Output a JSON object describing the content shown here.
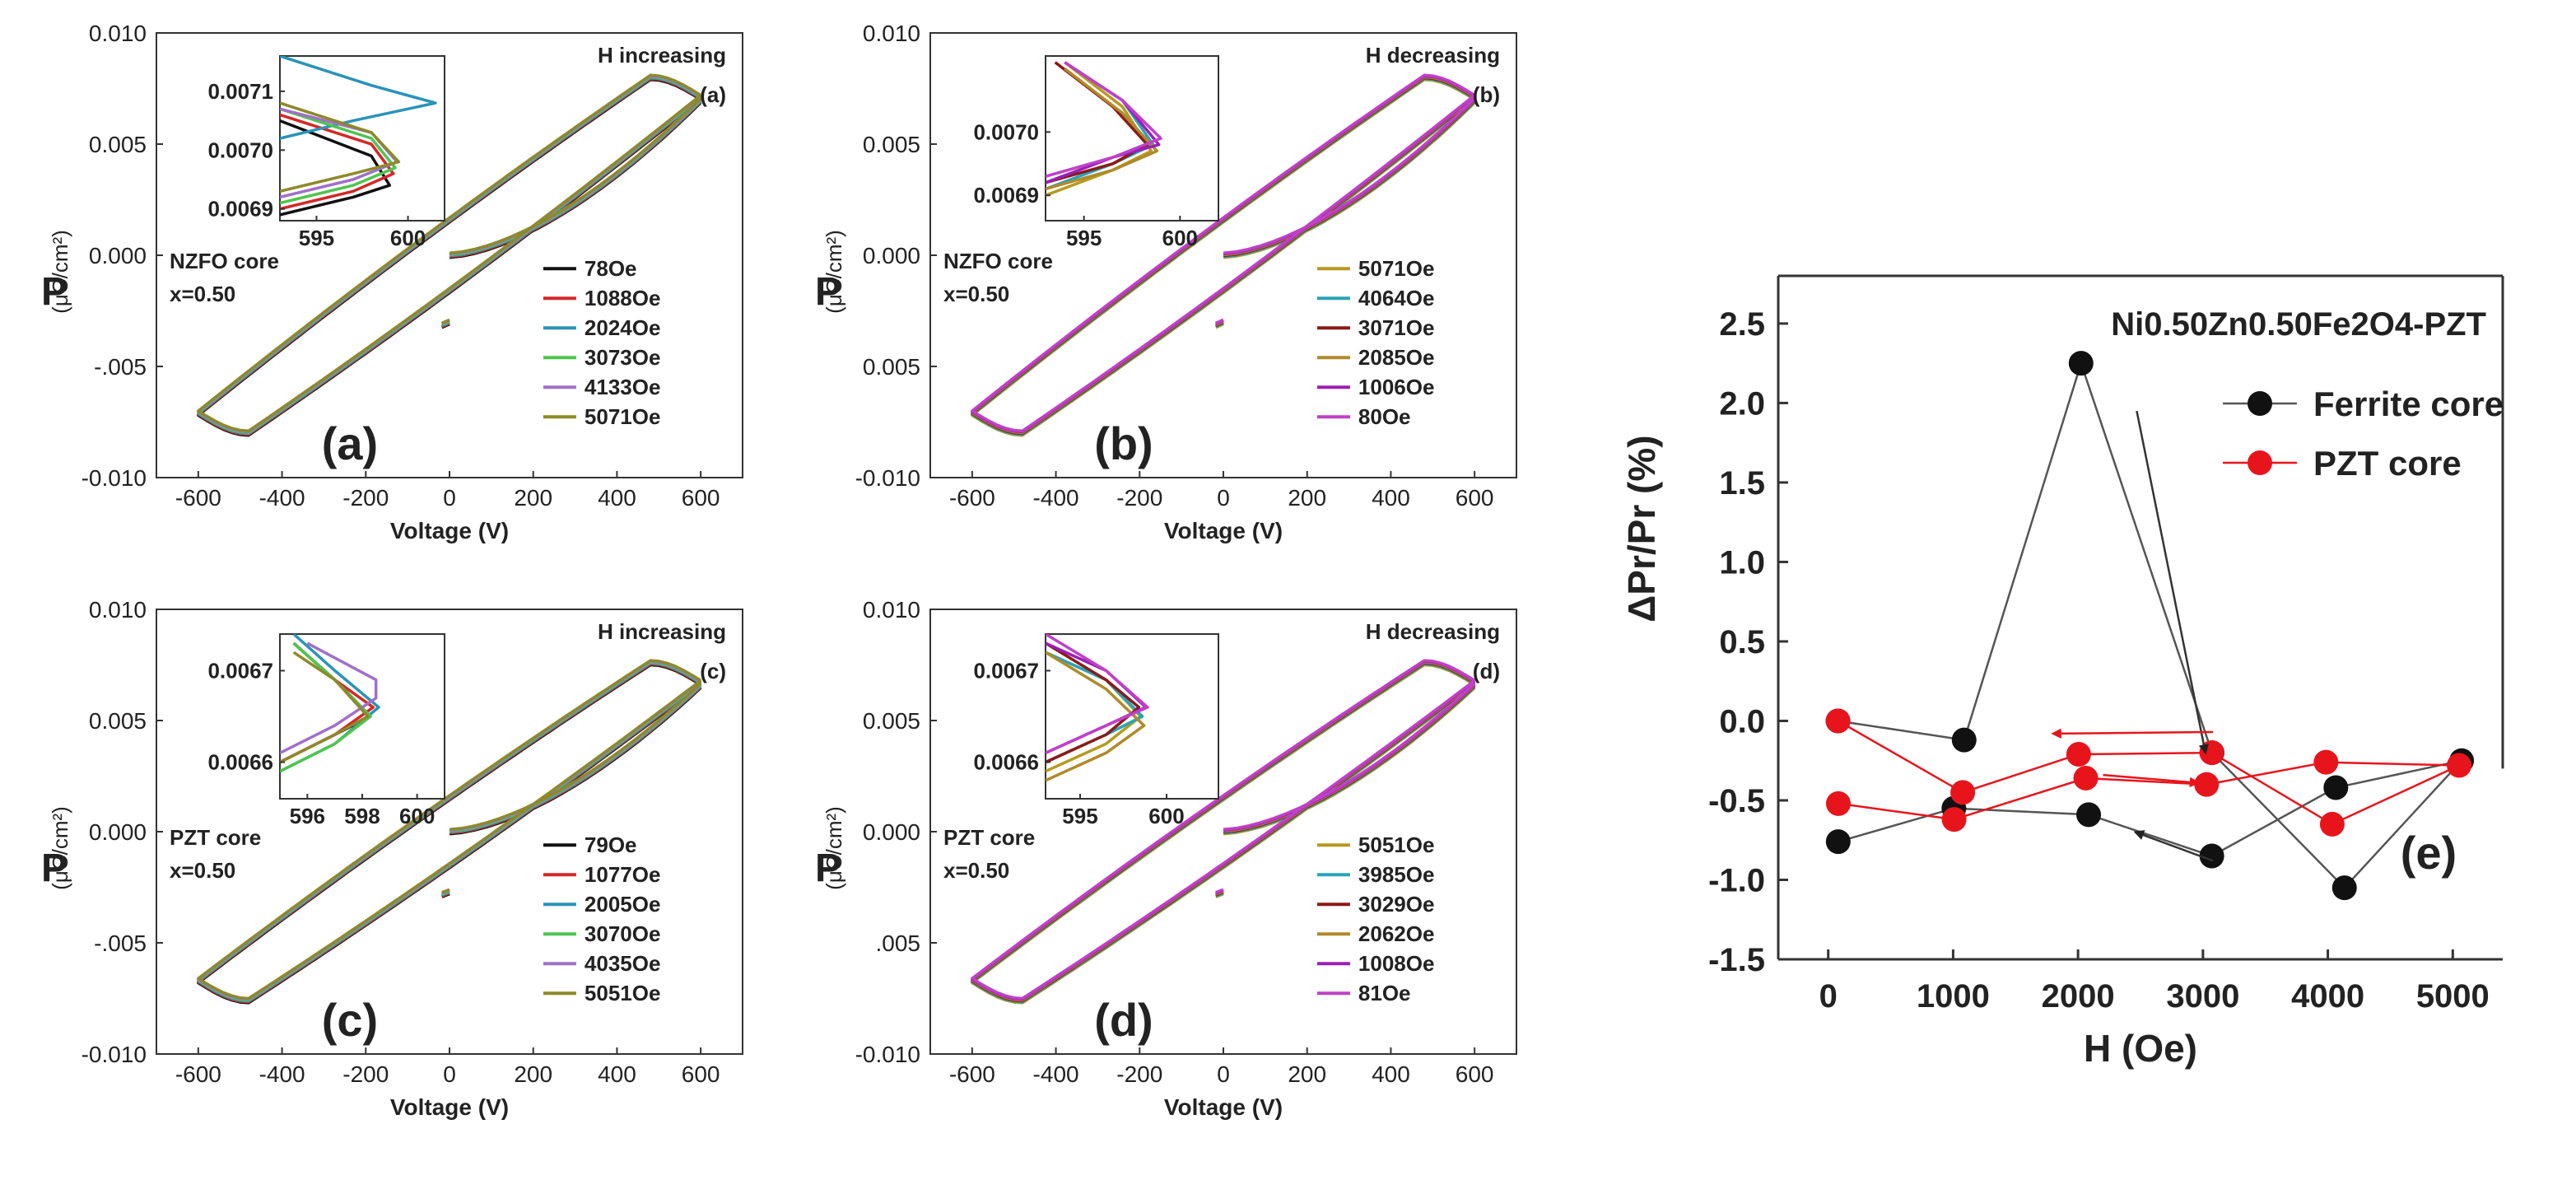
{
  "chart_data": [
    {
      "id": "a",
      "type": "line",
      "panel_label": "(a)",
      "corner_label": "(a)",
      "annotation": "H increasing",
      "core_label": "NZFO core",
      "x_label": "x=0.50",
      "xlabel": "Voltage (V)",
      "ylabel": "P",
      "yunit": "(μC/cm²)",
      "xlim": [
        -700,
        700
      ],
      "ylim": [
        -0.01,
        0.01
      ],
      "xticks": [
        "-600",
        "-400",
        "-200",
        "0",
        "200",
        "400",
        "600"
      ],
      "yticks": [
        "-0.010",
        "-.005",
        "0.000",
        "0.005",
        "0.010"
      ],
      "loop": {
        "vmax": 600,
        "pmax": 0.0071,
        "ppeak": 0.008,
        "vpeak": 480,
        "pinit_end": -0.003
      },
      "series": [
        {
          "name": "78Oe",
          "color": "#111111"
        },
        {
          "name": "1088Oe",
          "color": "#d62728"
        },
        {
          "name": "2024Oe",
          "color": "#2a93b8"
        },
        {
          "name": "3073Oe",
          "color": "#4fc44f"
        },
        {
          "name": "4133Oe",
          "color": "#a070c8"
        },
        {
          "name": "5071Oe",
          "color": "#8c8a2a"
        }
      ],
      "inset": {
        "xticks": [
          "595",
          "600"
        ],
        "yticks": [
          "0.0069",
          "0.0070",
          "0.0071"
        ],
        "xlim": [
          593,
          602
        ],
        "ylim": [
          0.00688,
          0.00716
        ],
        "curves": [
          {
            "color": "#111111",
            "points": [
              [
                593,
                0.00689
              ],
              [
                597,
                0.00692
              ],
              [
                599,
                0.00694
              ],
              [
                598,
                0.00699
              ],
              [
                593,
                0.00705
              ]
            ]
          },
          {
            "color": "#d62728",
            "points": [
              [
                593,
                0.0069
              ],
              [
                597,
                0.00693
              ],
              [
                599.2,
                0.00696
              ],
              [
                598,
                0.00701
              ],
              [
                593,
                0.00706
              ]
            ]
          },
          {
            "color": "#2a93b8",
            "points": [
              [
                593,
                0.00702
              ],
              [
                597,
                0.00705
              ],
              [
                601.5,
                0.00708
              ],
              [
                598,
                0.00711
              ],
              [
                593,
                0.00716
              ]
            ]
          },
          {
            "color": "#4fc44f",
            "points": [
              [
                593,
                0.00691
              ],
              [
                597,
                0.00694
              ],
              [
                599.3,
                0.00697
              ],
              [
                598,
                0.00702
              ],
              [
                593,
                0.00707
              ]
            ]
          },
          {
            "color": "#a070c8",
            "points": [
              [
                593,
                0.00692
              ],
              [
                597,
                0.00695
              ],
              [
                599.4,
                0.00698
              ],
              [
                598,
                0.00703
              ],
              [
                593,
                0.00707
              ]
            ]
          },
          {
            "color": "#8c8a2a",
            "points": [
              [
                593,
                0.00693
              ],
              [
                597,
                0.00696
              ],
              [
                599.5,
                0.00698
              ],
              [
                598,
                0.00703
              ],
              [
                593,
                0.00708
              ]
            ]
          }
        ]
      }
    },
    {
      "id": "b",
      "type": "line",
      "panel_label": "(b)",
      "corner_label": "(b)",
      "annotation": "H decreasing",
      "core_label": "NZFO core",
      "x_label": "x=0.50",
      "xlabel": "Voltage (V)",
      "ylabel": "P",
      "yunit": "(μC/cm²)",
      "xlim": [
        -700,
        700
      ],
      "ylim": [
        -0.01,
        0.01
      ],
      "xticks": [
        "-600",
        "-400",
        "-200",
        "0",
        "200",
        "400",
        "600"
      ],
      "yticks": [
        "-0.010",
        "0.005",
        "0.000",
        "0.005",
        "0.010"
      ],
      "loop": {
        "vmax": 600,
        "pmax": 0.0071,
        "ppeak": 0.008,
        "vpeak": 480,
        "pinit_end": -0.003
      },
      "series": [
        {
          "name": "5071Oe",
          "color": "#b59a1f"
        },
        {
          "name": "4064Oe",
          "color": "#2aa3b8"
        },
        {
          "name": "3071Oe",
          "color": "#8b1a1a"
        },
        {
          "name": "2085Oe",
          "color": "#b08a2a"
        },
        {
          "name": "1006Oe",
          "color": "#9b1fb5"
        },
        {
          "name": "80Oe",
          "color": "#c040c8"
        }
      ],
      "inset": {
        "xticks": [
          "595",
          "600"
        ],
        "yticks": [
          "0.0069",
          "0.0070"
        ],
        "xlim": [
          593,
          602
        ],
        "ylim": [
          0.00686,
          0.00712
        ],
        "curves": [
          {
            "color": "#b59a1f",
            "points": [
              [
                593,
                0.0069
              ],
              [
                596.5,
                0.00694
              ],
              [
                598.5,
                0.00697
              ],
              [
                597,
                0.00704
              ],
              [
                594,
                0.00711
              ]
            ]
          },
          {
            "color": "#2aa3b8",
            "points": [
              [
                593,
                0.00691
              ],
              [
                596.5,
                0.00695
              ],
              [
                598.6,
                0.00698
              ],
              [
                597,
                0.00705
              ],
              [
                594,
                0.00711
              ]
            ]
          },
          {
            "color": "#8b1a1a",
            "points": [
              [
                593,
                0.00692
              ],
              [
                596.5,
                0.00695
              ],
              [
                598.3,
                0.00698
              ],
              [
                596.5,
                0.00704
              ],
              [
                593.5,
                0.00711
              ]
            ]
          },
          {
            "color": "#b08a2a",
            "points": [
              [
                593,
                0.00691
              ],
              [
                596.5,
                0.00694
              ],
              [
                598.8,
                0.00697
              ],
              [
                597,
                0.00703
              ],
              [
                594,
                0.0071
              ]
            ]
          },
          {
            "color": "#9b1fb5",
            "points": [
              [
                593,
                0.00692
              ],
              [
                596.5,
                0.00696
              ],
              [
                598.9,
                0.00698
              ],
              [
                597,
                0.00705
              ],
              [
                594,
                0.00711
              ]
            ]
          },
          {
            "color": "#c040c8",
            "points": [
              [
                593,
                0.00693
              ],
              [
                596.5,
                0.00696
              ],
              [
                599.0,
                0.00699
              ],
              [
                597,
                0.00705
              ],
              [
                594,
                0.00711
              ]
            ]
          }
        ]
      }
    },
    {
      "id": "c",
      "type": "line",
      "panel_label": "(c)",
      "corner_label": "(c)",
      "annotation": "H increasing",
      "core_label": "PZT core",
      "x_label": "x=0.50",
      "xlabel": "Voltage (V)",
      "ylabel": "P",
      "yunit": "(μC/cm²)",
      "xlim": [
        -700,
        700
      ],
      "ylim": [
        -0.01,
        0.01
      ],
      "xticks": [
        "-600",
        "-400",
        "-200",
        "0",
        "200",
        "400",
        "600"
      ],
      "yticks": [
        "-0.010",
        "-.005",
        "0.000",
        "0.005",
        "0.010"
      ],
      "loop": {
        "vmax": 600,
        "pmax": 0.0067,
        "ppeak": 0.0076,
        "vpeak": 480,
        "pinit_end": -0.0027
      },
      "series": [
        {
          "name": "79Oe",
          "color": "#111111"
        },
        {
          "name": "1077Oe",
          "color": "#d62728"
        },
        {
          "name": "2005Oe",
          "color": "#2a93b8"
        },
        {
          "name": "3070Oe",
          "color": "#4fc44f"
        },
        {
          "name": "4035Oe",
          "color": "#a070c8"
        },
        {
          "name": "5051Oe",
          "color": "#8c8a2a"
        }
      ],
      "inset": {
        "xticks": [
          "596",
          "598",
          "600"
        ],
        "yticks": [
          "0.0066",
          "0.0067"
        ],
        "xlim": [
          595,
          601
        ],
        "ylim": [
          0.00656,
          0.00674
        ],
        "curves": [
          {
            "color": "#111111",
            "points": [
              [
                595,
                0.0066
              ],
              [
                597,
                0.00663
              ],
              [
                598.3,
                0.00665
              ],
              [
                597,
                0.00669
              ],
              [
                595.5,
                0.00673
              ]
            ]
          },
          {
            "color": "#d62728",
            "points": [
              [
                595,
                0.0066
              ],
              [
                597,
                0.00663
              ],
              [
                598.4,
                0.00666
              ],
              [
                597,
                0.00669
              ],
              [
                595.5,
                0.00673
              ]
            ]
          },
          {
            "color": "#2a93b8",
            "points": [
              [
                595,
                0.00659
              ],
              [
                597,
                0.00662
              ],
              [
                598.6,
                0.00666
              ],
              [
                597,
                0.0067
              ],
              [
                595.5,
                0.00674
              ]
            ]
          },
          {
            "color": "#4fc44f",
            "points": [
              [
                595,
                0.00659
              ],
              [
                597,
                0.00662
              ],
              [
                598.3,
                0.00665
              ],
              [
                597,
                0.00669
              ],
              [
                595.5,
                0.00673
              ]
            ]
          },
          {
            "color": "#a070c8",
            "points": [
              [
                595,
                0.00661
              ],
              [
                597,
                0.00664
              ],
              [
                598.5,
                0.00667
              ],
              [
                598.5,
                0.00669
              ],
              [
                596,
                0.00673
              ]
            ]
          },
          {
            "color": "#8c8a2a",
            "points": [
              [
                595,
                0.0066
              ],
              [
                597,
                0.00663
              ],
              [
                598.2,
                0.00665
              ],
              [
                597,
                0.00669
              ],
              [
                595.5,
                0.00672
              ]
            ]
          }
        ]
      }
    },
    {
      "id": "d",
      "type": "line",
      "panel_label": "(d)",
      "corner_label": "(d)",
      "annotation": "H decreasing",
      "core_label": "PZT core",
      "x_label": "x=0.50",
      "xlabel": "Voltage (V)",
      "ylabel": "P",
      "yunit": "(μC/cm²)",
      "xlim": [
        -700,
        700
      ],
      "ylim": [
        -0.01,
        0.01
      ],
      "xticks": [
        "-600",
        "-400",
        "-200",
        "0",
        "200",
        "400",
        "600"
      ],
      "yticks": [
        "-0.010",
        ".005",
        "0.000",
        "0.005",
        "0.010"
      ],
      "loop": {
        "vmax": 600,
        "pmax": 0.0067,
        "ppeak": 0.0076,
        "vpeak": 480,
        "pinit_end": -0.0027
      },
      "series": [
        {
          "name": "5051Oe",
          "color": "#b59a1f"
        },
        {
          "name": "3985Oe",
          "color": "#2aa3b8"
        },
        {
          "name": "3029Oe",
          "color": "#8b1a1a"
        },
        {
          "name": "2062Oe",
          "color": "#b08a2a"
        },
        {
          "name": "1008Oe",
          "color": "#9b1fb5"
        },
        {
          "name": "81Oe",
          "color": "#c040c8"
        }
      ],
      "inset": {
        "xticks": [
          "595",
          "600"
        ],
        "yticks": [
          "0.0066",
          "0.0067"
        ],
        "xlim": [
          593,
          603
        ],
        "ylim": [
          0.00656,
          0.00674
        ],
        "curves": [
          {
            "color": "#b59a1f",
            "points": [
              [
                593,
                0.00659
              ],
              [
                596.5,
                0.00662
              ],
              [
                598.5,
                0.00665
              ],
              [
                596.5,
                0.00669
              ],
              [
                593,
                0.00672
              ]
            ]
          },
          {
            "color": "#2aa3b8",
            "points": [
              [
                593,
                0.0066
              ],
              [
                596.5,
                0.00663
              ],
              [
                598.6,
                0.00665
              ],
              [
                596.5,
                0.00669
              ],
              [
                593,
                0.00672
              ]
            ]
          },
          {
            "color": "#8b1a1a",
            "points": [
              [
                593,
                0.0066
              ],
              [
                596.5,
                0.00663
              ],
              [
                598.4,
                0.00666
              ],
              [
                596.5,
                0.00669
              ],
              [
                593,
                0.00673
              ]
            ]
          },
          {
            "color": "#b08a2a",
            "points": [
              [
                593,
                0.00658
              ],
              [
                596.5,
                0.00661
              ],
              [
                598.7,
                0.00664
              ],
              [
                596.5,
                0.00668
              ],
              [
                593,
                0.00672
              ]
            ]
          },
          {
            "color": "#9b1fb5",
            "points": [
              [
                593,
                0.00661
              ],
              [
                596.5,
                0.00664
              ],
              [
                598.8,
                0.00666
              ],
              [
                596.5,
                0.0067
              ],
              [
                593,
                0.00673
              ]
            ]
          },
          {
            "color": "#c040c8",
            "points": [
              [
                593,
                0.00661
              ],
              [
                596.5,
                0.00664
              ],
              [
                598.9,
                0.00666
              ],
              [
                596.5,
                0.0067
              ],
              [
                593,
                0.00674
              ]
            ]
          }
        ]
      }
    },
    {
      "id": "e",
      "type": "line",
      "panel_label": "(e)",
      "title": "Ni0.50Zn0.50Fe2O4-PZT",
      "xlabel": "H (Oe)",
      "ylabel": "ΔPr/Pr (%)",
      "xlim": [
        -400,
        5400
      ],
      "ylim": [
        -1.5,
        2.8
      ],
      "xticks": [
        0,
        1000,
        2000,
        3000,
        4000,
        5000
      ],
      "yticks": [
        "2.5",
        "2.0",
        "1.5",
        "1.0",
        "0.5",
        "0.0",
        "-0.5",
        "-1.0",
        "-1.5"
      ],
      "ytick_values": [
        2.5,
        2.0,
        1.5,
        1.0,
        0.5,
        0.0,
        -0.5,
        -1.0,
        -1.5
      ],
      "legend_position": "top-right",
      "series": [
        {
          "name": "Ferrite core",
          "color": "#111111",
          "x": [
            78,
            1088,
            2024,
            3073,
            4133,
            5071,
            4064,
            3071,
            2085,
            1006,
            80
          ],
          "y": [
            0.0,
            -0.12,
            2.25,
            -0.2,
            -1.05,
            -0.25,
            -0.42,
            -0.85,
            -0.59,
            -0.55,
            -0.76
          ]
        },
        {
          "name": "PZT core",
          "color": "#e8141c",
          "x": [
            79,
            1077,
            2005,
            3070,
            4035,
            5051,
            3985,
            3029,
            2062,
            1008,
            81
          ],
          "y": [
            0.0,
            -0.45,
            -0.21,
            -0.2,
            -0.65,
            -0.28,
            -0.26,
            -0.4,
            -0.36,
            -0.62,
            -0.52
          ]
        }
      ]
    }
  ]
}
